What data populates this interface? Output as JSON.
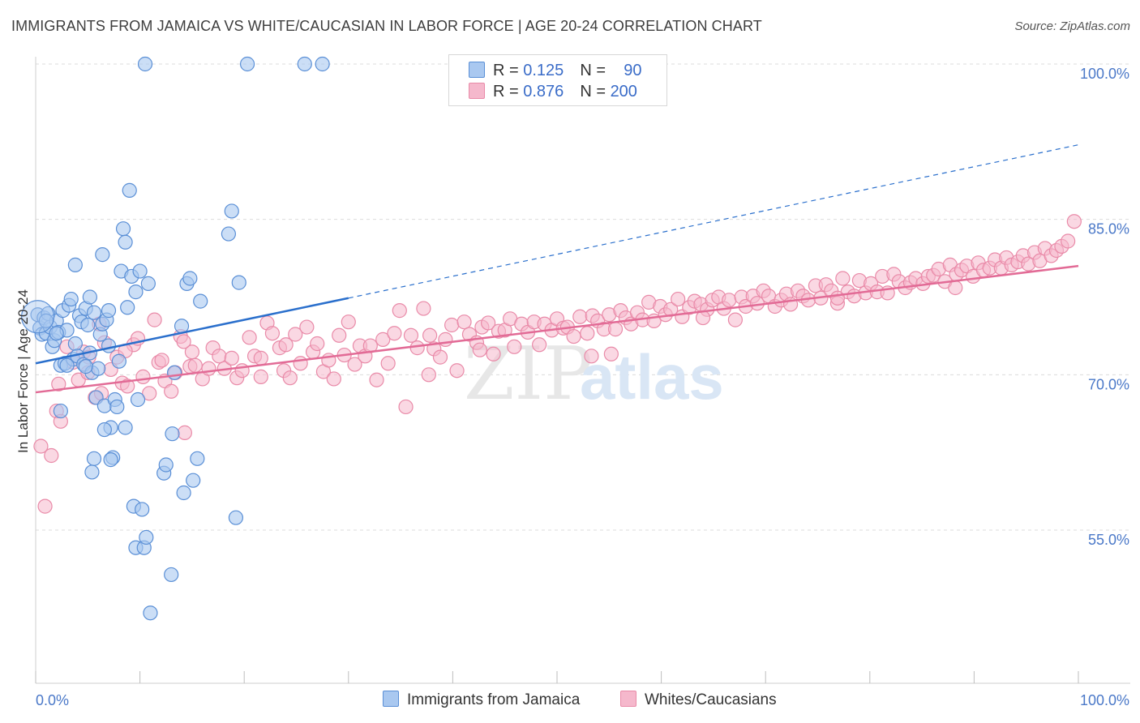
{
  "title": "IMMIGRANTS FROM JAMAICA VS WHITE/CAUCASIAN IN LABOR FORCE | AGE 20-24 CORRELATION CHART",
  "source": "Source: ZipAtlas.com",
  "watermark": {
    "zip": "ZIP",
    "atlas": "atlas"
  },
  "colors": {
    "blue_fill": "#a9c8f0",
    "blue_stroke": "#5a8fd6",
    "blue_line": "#2a6fcc",
    "pink_fill": "#f5b8cc",
    "pink_stroke": "#e98aa8",
    "pink_line": "#e26b96",
    "axis_text": "#4a78c8",
    "grid": "#dcdcdc"
  },
  "legend_top": {
    "rows": [
      {
        "r_label": "R =",
        "r_value": "0.125",
        "n_label": "N =",
        "n_value": "90"
      },
      {
        "r_label": "R =",
        "r_value": "0.876",
        "n_label": "N =",
        "n_value": "200"
      }
    ]
  },
  "legend_bottom": {
    "series1": "Immigrants from Jamaica",
    "series2": "Whites/Caucasians"
  },
  "chart_data": {
    "type": "scatter",
    "title": "IMMIGRANTS FROM JAMAICA VS WHITE/CAUCASIAN IN LABOR FORCE | AGE 20-24 CORRELATION CHART",
    "xlabel": "",
    "ylabel": "In Labor Force | Age 20-24",
    "xlim": [
      0,
      100
    ],
    "ylim": [
      40,
      102
    ],
    "x_tick_labels": [
      "0.0%",
      "100.0%"
    ],
    "y_ticks": [
      55,
      70,
      85,
      100
    ],
    "y_tick_labels": [
      "55.0%",
      "70.0%",
      "85.0%",
      "100.0%"
    ],
    "series": [
      {
        "name": "Immigrants from Jamaica",
        "color": "#a9c8f0",
        "R": 0.125,
        "N": 90,
        "trend": {
          "x": [
            0,
            30
          ],
          "y": [
            71.1,
            77.4
          ],
          "dashed_extension": {
            "x": [
              30,
              100
            ],
            "y": [
              77.4,
              92.2
            ]
          }
        },
        "points": [
          [
            0.2,
            75.8
          ],
          [
            0.4,
            74.5
          ],
          [
            0.6,
            73.9
          ],
          [
            0.8,
            75.5
          ],
          [
            1.0,
            74.0
          ],
          [
            1.2,
            75.9
          ],
          [
            1.4,
            74.6
          ],
          [
            1.6,
            72.7
          ],
          [
            1.8,
            73.3
          ],
          [
            2.0,
            75.2
          ],
          [
            2.2,
            74.1
          ],
          [
            2.4,
            70.9
          ],
          [
            2.6,
            76.2
          ],
          [
            2.8,
            71.1
          ],
          [
            3.0,
            74.3
          ],
          [
            3.2,
            76.7
          ],
          [
            3.4,
            77.3
          ],
          [
            3.6,
            71.5
          ],
          [
            3.8,
            73.0
          ],
          [
            4.0,
            71.8
          ],
          [
            4.2,
            75.7
          ],
          [
            4.4,
            75.1
          ],
          [
            4.6,
            71.0
          ],
          [
            4.8,
            76.4
          ],
          [
            5.0,
            74.8
          ],
          [
            5.2,
            77.5
          ],
          [
            5.4,
            70.2
          ],
          [
            5.6,
            76.0
          ],
          [
            5.8,
            67.8
          ],
          [
            6.0,
            70.6
          ],
          [
            6.2,
            73.9
          ],
          [
            6.4,
            74.9
          ],
          [
            6.6,
            67.0
          ],
          [
            6.8,
            75.3
          ],
          [
            7.0,
            76.2
          ],
          [
            7.2,
            64.9
          ],
          [
            7.4,
            62.0
          ],
          [
            7.6,
            67.6
          ],
          [
            7.8,
            66.9
          ],
          [
            8.0,
            71.3
          ],
          [
            8.2,
            80.0
          ],
          [
            8.4,
            84.1
          ],
          [
            8.6,
            82.8
          ],
          [
            8.8,
            76.5
          ],
          [
            9.0,
            87.8
          ],
          [
            9.2,
            79.5
          ],
          [
            9.4,
            57.3
          ],
          [
            9.6,
            53.3
          ],
          [
            9.8,
            67.6
          ],
          [
            10.0,
            80.0
          ],
          [
            10.2,
            57.0
          ],
          [
            10.4,
            53.3
          ],
          [
            10.6,
            54.3
          ],
          [
            10.8,
            78.8
          ],
          [
            11.0,
            47.0
          ],
          [
            10.5,
            100.0
          ],
          [
            12.3,
            60.5
          ],
          [
            12.5,
            61.3
          ],
          [
            13.0,
            50.7
          ],
          [
            13.3,
            70.2
          ],
          [
            14.0,
            74.7
          ],
          [
            14.2,
            58.6
          ],
          [
            14.5,
            78.8
          ],
          [
            14.8,
            79.3
          ],
          [
            15.1,
            59.8
          ],
          [
            15.5,
            61.9
          ],
          [
            15.8,
            77.1
          ],
          [
            18.5,
            83.6
          ],
          [
            18.8,
            85.8
          ],
          [
            19.2,
            56.2
          ],
          [
            19.5,
            78.9
          ],
          [
            20.3,
            100.0
          ],
          [
            25.8,
            100.0
          ],
          [
            27.5,
            100.0
          ],
          [
            13.1,
            64.3
          ],
          [
            8.6,
            64.9
          ],
          [
            6.6,
            64.7
          ],
          [
            7.2,
            61.8
          ],
          [
            5.4,
            60.6
          ],
          [
            5.6,
            61.9
          ],
          [
            3.8,
            80.6
          ],
          [
            6.4,
            81.6
          ],
          [
            9.6,
            78.0
          ],
          [
            1.0,
            75.2
          ],
          [
            2.0,
            74.0
          ],
          [
            4.8,
            70.8
          ],
          [
            2.4,
            66.5
          ],
          [
            3.0,
            70.9
          ],
          [
            5.2,
            72.1
          ],
          [
            7.0,
            72.8
          ]
        ]
      },
      {
        "name": "Whites/Caucasians",
        "color": "#f5b8cc",
        "R": 0.876,
        "N": 200,
        "trend": {
          "x": [
            0,
            100
          ],
          "y": [
            68.3,
            80.5
          ]
        },
        "points": [
          [
            0.5,
            63.1
          ],
          [
            0.9,
            57.3
          ],
          [
            1.5,
            62.2
          ],
          [
            2.0,
            66.5
          ],
          [
            2.4,
            65.5
          ],
          [
            3.0,
            72.7
          ],
          [
            3.6,
            71.2
          ],
          [
            4.1,
            69.5
          ],
          [
            4.6,
            72.2
          ],
          [
            5.0,
            70.2
          ],
          [
            5.7,
            67.8
          ],
          [
            6.3,
            68.2
          ],
          [
            6.6,
            73.1
          ],
          [
            7.2,
            70.5
          ],
          [
            7.8,
            71.7
          ],
          [
            8.3,
            69.2
          ],
          [
            8.8,
            68.9
          ],
          [
            9.4,
            72.9
          ],
          [
            9.8,
            73.5
          ],
          [
            10.3,
            69.8
          ],
          [
            10.9,
            68.2
          ],
          [
            11.4,
            75.3
          ],
          [
            11.8,
            71.2
          ],
          [
            12.4,
            69.4
          ],
          [
            13.0,
            68.4
          ],
          [
            13.4,
            70.2
          ],
          [
            13.9,
            73.7
          ],
          [
            14.3,
            64.4
          ],
          [
            14.8,
            70.8
          ],
          [
            15.3,
            70.9
          ],
          [
            16.0,
            69.6
          ],
          [
            16.6,
            70.6
          ],
          [
            17.0,
            72.6
          ],
          [
            17.6,
            71.8
          ],
          [
            18.1,
            70.6
          ],
          [
            18.8,
            71.6
          ],
          [
            19.3,
            69.7
          ],
          [
            19.8,
            70.4
          ],
          [
            20.5,
            73.6
          ],
          [
            21.0,
            71.8
          ],
          [
            21.6,
            69.8
          ],
          [
            22.2,
            75.0
          ],
          [
            22.7,
            74.0
          ],
          [
            23.4,
            72.6
          ],
          [
            23.8,
            70.4
          ],
          [
            24.4,
            69.7
          ],
          [
            24.9,
            73.9
          ],
          [
            25.4,
            71.1
          ],
          [
            26.0,
            74.6
          ],
          [
            26.6,
            72.2
          ],
          [
            27.0,
            73.0
          ],
          [
            27.6,
            70.3
          ],
          [
            28.1,
            71.4
          ],
          [
            28.6,
            69.6
          ],
          [
            29.1,
            73.8
          ],
          [
            29.6,
            71.9
          ],
          [
            30.0,
            75.1
          ],
          [
            30.6,
            71.0
          ],
          [
            31.1,
            72.8
          ],
          [
            31.6,
            71.8
          ],
          [
            32.1,
            72.8
          ],
          [
            32.7,
            69.5
          ],
          [
            33.3,
            73.4
          ],
          [
            33.8,
            71.1
          ],
          [
            34.4,
            74.0
          ],
          [
            34.9,
            76.2
          ],
          [
            35.5,
            66.9
          ],
          [
            36.0,
            73.8
          ],
          [
            36.6,
            72.6
          ],
          [
            37.2,
            76.4
          ],
          [
            37.8,
            73.8
          ],
          [
            38.2,
            72.5
          ],
          [
            38.8,
            71.7
          ],
          [
            39.3,
            73.4
          ],
          [
            39.9,
            74.8
          ],
          [
            40.4,
            70.4
          ],
          [
            41.1,
            75.1
          ],
          [
            41.6,
            73.9
          ],
          [
            42.3,
            73.1
          ],
          [
            42.8,
            74.6
          ],
          [
            43.4,
            75.0
          ],
          [
            43.9,
            72.0
          ],
          [
            44.4,
            74.2
          ],
          [
            45.0,
            74.3
          ],
          [
            45.5,
            75.4
          ],
          [
            45.9,
            72.7
          ],
          [
            46.6,
            74.9
          ],
          [
            47.2,
            74.1
          ],
          [
            47.8,
            75.1
          ],
          [
            48.3,
            72.9
          ],
          [
            48.8,
            74.9
          ],
          [
            49.5,
            74.3
          ],
          [
            50.0,
            75.4
          ],
          [
            50.6,
            74.5
          ],
          [
            51.0,
            74.6
          ],
          [
            51.6,
            73.7
          ],
          [
            52.2,
            75.6
          ],
          [
            52.9,
            74.0
          ],
          [
            53.4,
            75.7
          ],
          [
            53.9,
            75.2
          ],
          [
            54.5,
            74.4
          ],
          [
            55.0,
            75.8
          ],
          [
            55.6,
            74.4
          ],
          [
            56.1,
            76.2
          ],
          [
            56.6,
            75.5
          ],
          [
            57.1,
            74.9
          ],
          [
            57.7,
            76.0
          ],
          [
            58.2,
            75.3
          ],
          [
            58.8,
            77.0
          ],
          [
            59.3,
            75.2
          ],
          [
            59.9,
            76.6
          ],
          [
            60.4,
            75.8
          ],
          [
            60.9,
            76.3
          ],
          [
            61.6,
            77.3
          ],
          [
            62.0,
            75.6
          ],
          [
            62.7,
            76.5
          ],
          [
            63.2,
            77.1
          ],
          [
            63.8,
            76.8
          ],
          [
            64.4,
            76.3
          ],
          [
            64.9,
            77.2
          ],
          [
            65.5,
            77.5
          ],
          [
            66.0,
            76.4
          ],
          [
            66.5,
            77.2
          ],
          [
            67.1,
            75.3
          ],
          [
            67.7,
            77.5
          ],
          [
            68.1,
            76.6
          ],
          [
            68.8,
            77.6
          ],
          [
            69.2,
            76.9
          ],
          [
            69.8,
            78.1
          ],
          [
            70.3,
            77.6
          ],
          [
            70.9,
            76.6
          ],
          [
            71.5,
            77.2
          ],
          [
            72.0,
            77.8
          ],
          [
            72.4,
            76.8
          ],
          [
            73.1,
            78.1
          ],
          [
            73.6,
            77.6
          ],
          [
            74.1,
            77.2
          ],
          [
            74.8,
            78.6
          ],
          [
            75.3,
            77.4
          ],
          [
            75.8,
            78.7
          ],
          [
            76.3,
            78.1
          ],
          [
            76.9,
            76.9
          ],
          [
            77.4,
            79.3
          ],
          [
            77.9,
            78.0
          ],
          [
            78.5,
            77.6
          ],
          [
            79.0,
            79.1
          ],
          [
            79.6,
            77.9
          ],
          [
            80.1,
            78.8
          ],
          [
            80.7,
            78.0
          ],
          [
            81.2,
            79.5
          ],
          [
            81.7,
            77.9
          ],
          [
            82.3,
            79.7
          ],
          [
            82.8,
            79.0
          ],
          [
            83.4,
            78.4
          ],
          [
            83.9,
            78.9
          ],
          [
            84.4,
            79.3
          ],
          [
            85.1,
            78.8
          ],
          [
            85.6,
            79.5
          ],
          [
            86.1,
            79.6
          ],
          [
            86.6,
            80.2
          ],
          [
            87.2,
            79.0
          ],
          [
            87.7,
            80.6
          ],
          [
            88.3,
            79.7
          ],
          [
            88.8,
            80.1
          ],
          [
            89.3,
            80.5
          ],
          [
            89.9,
            79.5
          ],
          [
            90.4,
            80.8
          ],
          [
            90.9,
            80.1
          ],
          [
            91.5,
            80.3
          ],
          [
            92.0,
            81.1
          ],
          [
            92.6,
            80.3
          ],
          [
            93.1,
            81.3
          ],
          [
            93.6,
            80.6
          ],
          [
            94.2,
            80.9
          ],
          [
            94.7,
            81.5
          ],
          [
            95.2,
            80.7
          ],
          [
            95.8,
            81.8
          ],
          [
            96.3,
            81.0
          ],
          [
            96.8,
            82.2
          ],
          [
            97.4,
            81.5
          ],
          [
            97.9,
            82.0
          ],
          [
            98.4,
            82.4
          ],
          [
            99.0,
            82.9
          ],
          [
            99.6,
            84.8
          ],
          [
            15.0,
            72.2
          ],
          [
            21.6,
            71.6
          ],
          [
            42.6,
            72.4
          ],
          [
            55.2,
            72.0
          ],
          [
            6.1,
            74.9
          ],
          [
            12.1,
            71.4
          ],
          [
            24.0,
            72.9
          ],
          [
            37.7,
            70.0
          ],
          [
            53.3,
            71.8
          ],
          [
            64.0,
            75.5
          ],
          [
            76.9,
            77.4
          ],
          [
            88.2,
            78.4
          ],
          [
            2.2,
            69.1
          ],
          [
            5.1,
            71.7
          ],
          [
            8.6,
            72.3
          ],
          [
            14.2,
            73.2
          ]
        ]
      }
    ]
  }
}
